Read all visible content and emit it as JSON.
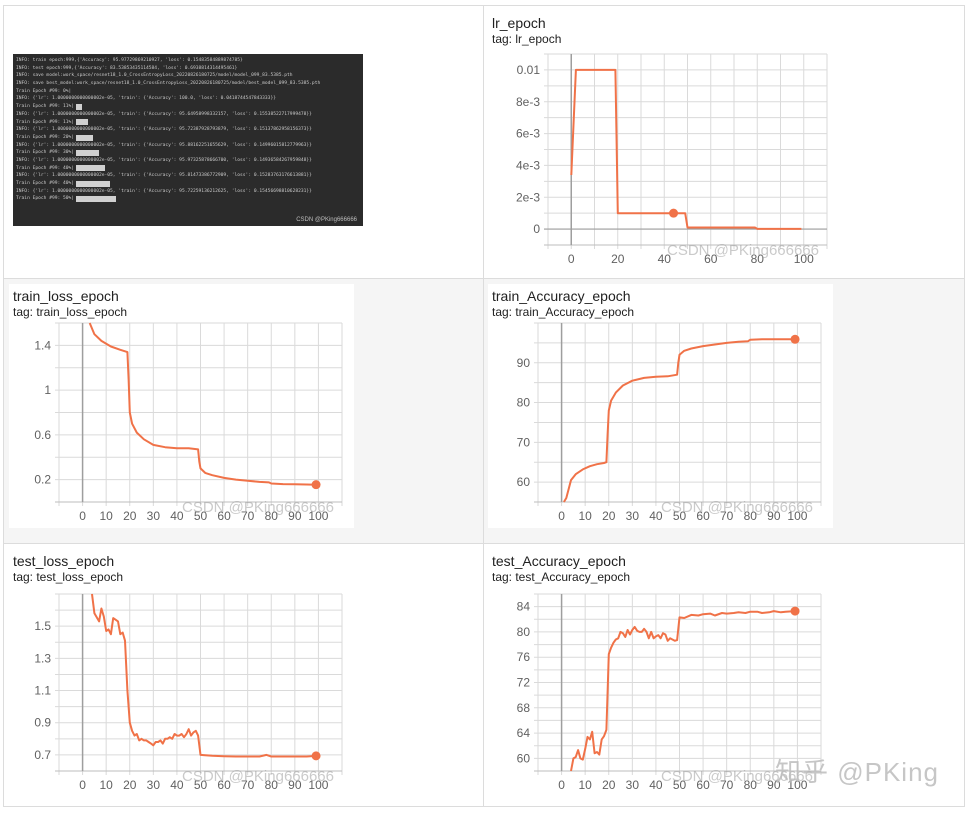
{
  "terminal": {
    "lines": [
      {
        "text": "INFO: train epoch:999,{'Accuracy': 95.97729869210927, 'loss': 0.15483584889874785}",
        "bar": 0
      },
      {
        "text": "INFO: test epoch:999,{'Accuracy': 83.53853435114584, 'loss': 0.6938814314495461}",
        "bar": 0
      },
      {
        "text": "INFO: save model:work_space/resnet18_1.0_CrossEntropyLoss_20220826180725/model/model_099_83.5385.pth",
        "bar": 0
      },
      {
        "text": "INFO: save best_model:work_space/resnet18_1.0_CrossEntropyLoss_20220826180725/model/best_model_099_83.5385.pth",
        "bar": 0
      },
      {
        "text": "Train Epoch #99:    0%|",
        "bar": 0
      },
      {
        "text": "INFO: {'lr': 1.0000000000000002e-05, 'train': {'Accuracy': 100.0, 'loss': 0.0418744547843333}}",
        "bar": 0
      },
      {
        "text": "Train Epoch #99:   11%|",
        "bar": 6
      },
      {
        "text": "INFO: {'lr': 1.0000000000000002e-05, 'train': {'Accuracy': 95.64958998332157, 'loss': 0.15538522717999478}}",
        "bar": 0
      },
      {
        "text": "Train Epoch #99:   11%|",
        "bar": 12
      },
      {
        "text": "INFO: {'lr': 1.0000000000000002e-05, 'train': {'Accuracy': 95.72387928793879, 'loss': 0.15137862958156373}}",
        "bar": 0
      },
      {
        "text": "Train Epoch #99:   20%|",
        "bar": 17
      },
      {
        "text": "INFO: {'lr': 1.0000000000000002e-05, 'train': {'Accuracy': 95.88162251655629, 'loss': 0.14996015812779963}}",
        "bar": 0
      },
      {
        "text": "Train Epoch #99:   30%|",
        "bar": 23
      },
      {
        "text": "INFO: {'lr': 1.0000000000000002e-05, 'train': {'Accuracy': 95.97325878666700, 'loss': 0.14936584267959848}}",
        "bar": 0
      },
      {
        "text": "Train Epoch #99:   40%|",
        "bar": 29
      },
      {
        "text": "INFO: {'lr': 1.0000000000000002e-05, 'train': {'Accuracy': 95.81473386772909, 'loss': 0.15283763176613881}}",
        "bar": 0
      },
      {
        "text": "Train Epoch #99:   40%|",
        "bar": 34
      },
      {
        "text": "INFO: {'lr': 1.0000000000000002e-05, 'train': {'Accuracy': 95.72259136212625, 'loss': 0.15456698810628231}}",
        "bar": 0
      },
      {
        "text": "Train Epoch #99:   50%|",
        "bar": 40
      }
    ],
    "watermark": "CSDN @PKing666666"
  },
  "panels": {
    "lr": {
      "title": "lr_epoch",
      "tag": "tag: lr_epoch"
    },
    "train_loss": {
      "title": "train_loss_epoch",
      "tag": "tag: train_loss_epoch"
    },
    "train_acc": {
      "title": "train_Accuracy_epoch",
      "tag": "tag: train_Accuracy_epoch"
    },
    "test_loss": {
      "title": "test_loss_epoch",
      "tag": "tag: test_loss_epoch"
    },
    "test_acc": {
      "title": "test_Accuracy_epoch",
      "tag": "tag: test_Accuracy_epoch"
    }
  },
  "watermarks": {
    "csdn": "CSDN @PKing666666",
    "zhihu": "知乎 @PKing"
  },
  "colors": {
    "line": "#f07248",
    "grid": "#dadada",
    "zero_axis": "#9e9e9e",
    "cell_bg_middle_row": "#f5f5f5",
    "terminal_bg": "#2b2b2b"
  },
  "chart_data": [
    {
      "type": "line",
      "title": "lr_epoch",
      "subtitle": "tag: lr_epoch",
      "xlabel": "",
      "ylabel": "",
      "xlim": [
        -10,
        110
      ],
      "ylim": [
        -0.001,
        0.011
      ],
      "xticks": [
        0,
        20,
        40,
        60,
        80,
        100
      ],
      "xtick_labels": [
        "0",
        "20",
        "40",
        "60",
        "80",
        "100"
      ],
      "yticks": [
        0,
        0.002,
        0.004,
        0.006,
        0.008,
        0.01
      ],
      "ytick_labels": [
        "0",
        "2e-3",
        "4e-3",
        "6e-3",
        "8e-3",
        "0.01"
      ],
      "grid": true,
      "highlight_point": {
        "x": 44,
        "y": 0.001
      },
      "x": [
        0,
        2,
        19,
        20,
        49,
        50,
        79,
        80,
        99
      ],
      "values": [
        0.0034,
        0.01,
        0.01,
        0.001,
        0.001,
        0.0001,
        0.0001,
        1e-05,
        1e-05
      ]
    },
    {
      "type": "line",
      "title": "train_loss_epoch",
      "subtitle": "tag: train_loss_epoch",
      "xlabel": "",
      "ylabel": "",
      "xlim": [
        -10,
        110
      ],
      "ylim": [
        0,
        1.6
      ],
      "xticks": [
        0,
        10,
        20,
        30,
        40,
        50,
        60,
        70,
        80,
        90,
        100
      ],
      "xtick_labels": [
        "0",
        "10",
        "20",
        "30",
        "40",
        "50",
        "60",
        "70",
        "80",
        "90",
        "100"
      ],
      "yticks": [
        0.2,
        0.6,
        1,
        1.4
      ],
      "ytick_labels": [
        "0.2",
        "0.6",
        "1",
        "1.4"
      ],
      "grid": true,
      "highlight_point": {
        "x": 99,
        "y": 0.155
      },
      "x": [
        3,
        5,
        8,
        12,
        16,
        19,
        19.5,
        20,
        21,
        23,
        26,
        30,
        35,
        40,
        45,
        49,
        49.5,
        50,
        52,
        55,
        60,
        65,
        70,
        75,
        79,
        80,
        85,
        90,
        95,
        99
      ],
      "values": [
        1.6,
        1.5,
        1.44,
        1.39,
        1.36,
        1.34,
        1.1,
        0.8,
        0.7,
        0.62,
        0.56,
        0.51,
        0.49,
        0.48,
        0.48,
        0.47,
        0.36,
        0.3,
        0.26,
        0.24,
        0.215,
        0.2,
        0.19,
        0.18,
        0.175,
        0.165,
        0.16,
        0.158,
        0.156,
        0.155
      ]
    },
    {
      "type": "line",
      "title": "train_Accuracy_epoch",
      "subtitle": "tag: train_Accuracy_epoch",
      "xlabel": "",
      "ylabel": "",
      "xlim": [
        -10,
        110
      ],
      "ylim": [
        55,
        100
      ],
      "xticks": [
        0,
        10,
        20,
        30,
        40,
        50,
        60,
        70,
        80,
        90,
        100
      ],
      "xtick_labels": [
        "0",
        "10",
        "20",
        "30",
        "40",
        "50",
        "60",
        "70",
        "80",
        "90",
        "100"
      ],
      "yticks": [
        60,
        70,
        80,
        90
      ],
      "ytick_labels": [
        "60",
        "70",
        "80",
        "90"
      ],
      "grid": true,
      "highlight_point": {
        "x": 99,
        "y": 95.9
      },
      "x": [
        1,
        2,
        4,
        6,
        9,
        12,
        15,
        18,
        19,
        19.5,
        20,
        21,
        23,
        26,
        30,
        35,
        40,
        45,
        49,
        49.5,
        50,
        52,
        55,
        60,
        65,
        70,
        75,
        79,
        80,
        85,
        90,
        95,
        99
      ],
      "values": [
        55,
        56,
        60.5,
        62,
        63.2,
        64,
        64.5,
        64.8,
        65,
        72,
        78,
        80.5,
        82.5,
        84.3,
        85.5,
        86.2,
        86.5,
        86.6,
        87,
        90,
        92,
        93,
        93.6,
        94.2,
        94.6,
        95,
        95.3,
        95.4,
        95.8,
        95.9,
        95.9,
        95.9,
        95.9
      ]
    },
    {
      "type": "line",
      "title": "test_loss_epoch",
      "subtitle": "tag: test_loss_epoch",
      "xlabel": "",
      "ylabel": "",
      "xlim": [
        -10,
        110
      ],
      "ylim": [
        0.6,
        1.7
      ],
      "xticks": [
        0,
        10,
        20,
        30,
        40,
        50,
        60,
        70,
        80,
        90,
        100
      ],
      "xtick_labels": [
        "0",
        "10",
        "20",
        "30",
        "40",
        "50",
        "60",
        "70",
        "80",
        "90",
        "100"
      ],
      "yticks": [
        0.7,
        0.9,
        1.1,
        1.3,
        1.5
      ],
      "ytick_labels": [
        "0.7",
        "0.9",
        "1.1",
        "1.3",
        "1.5"
      ],
      "grid": true,
      "highlight_point": {
        "x": 99,
        "y": 0.694
      },
      "x": [
        4,
        5,
        7,
        8,
        9,
        10,
        11,
        12,
        13,
        14,
        15,
        16,
        17,
        18,
        19,
        20,
        21,
        22,
        23,
        24,
        25,
        26,
        27,
        28,
        29,
        30,
        31,
        32,
        33,
        34,
        35,
        36,
        37,
        38,
        39,
        40,
        41,
        42,
        43,
        44,
        45,
        46,
        47,
        48,
        49,
        50,
        52,
        55,
        60,
        65,
        70,
        75,
        78,
        80,
        85,
        90,
        95,
        99
      ],
      "values": [
        1.7,
        1.58,
        1.53,
        1.61,
        1.56,
        1.47,
        1.48,
        1.45,
        1.55,
        1.54,
        1.53,
        1.45,
        1.46,
        1.41,
        1.1,
        0.9,
        0.85,
        0.82,
        0.83,
        0.79,
        0.8,
        0.79,
        0.79,
        0.78,
        0.77,
        0.76,
        0.78,
        0.78,
        0.79,
        0.77,
        0.8,
        0.8,
        0.81,
        0.8,
        0.83,
        0.82,
        0.82,
        0.83,
        0.81,
        0.83,
        0.86,
        0.82,
        0.84,
        0.85,
        0.82,
        0.7,
        0.698,
        0.695,
        0.692,
        0.69,
        0.69,
        0.69,
        0.7,
        0.69,
        0.69,
        0.69,
        0.69,
        0.694
      ]
    },
    {
      "type": "line",
      "title": "test_Accuracy_epoch",
      "subtitle": "tag: test_Accuracy_epoch",
      "xlabel": "",
      "ylabel": "",
      "xlim": [
        -10,
        110
      ],
      "ylim": [
        58,
        86
      ],
      "xticks": [
        0,
        10,
        20,
        30,
        40,
        50,
        60,
        70,
        80,
        90,
        100
      ],
      "xtick_labels": [
        "0",
        "10",
        "20",
        "30",
        "40",
        "50",
        "60",
        "70",
        "80",
        "90",
        "100"
      ],
      "yticks": [
        60,
        64,
        68,
        72,
        76,
        80,
        84
      ],
      "ytick_labels": [
        "60",
        "64",
        "68",
        "72",
        "76",
        "80",
        "84"
      ],
      "grid": true,
      "highlight_point": {
        "x": 99,
        "y": 83.3
      },
      "x": [
        4,
        5,
        6,
        7,
        8,
        9,
        10,
        11,
        12,
        13,
        14,
        15,
        16,
        17,
        18,
        19,
        20,
        21,
        22,
        23,
        24,
        25,
        26,
        27,
        28,
        29,
        30,
        31,
        32,
        33,
        34,
        35,
        36,
        37,
        38,
        39,
        40,
        41,
        42,
        43,
        44,
        45,
        46,
        47,
        48,
        49,
        50,
        52,
        55,
        58,
        60,
        63,
        65,
        68,
        70,
        73,
        75,
        78,
        80,
        83,
        85,
        88,
        90,
        93,
        95,
        99
      ],
      "values": [
        58,
        60,
        60.2,
        61.3,
        60,
        59.8,
        61.5,
        63.4,
        63,
        64.2,
        60.8,
        61,
        60.6,
        63,
        63.5,
        64.5,
        76.5,
        77.5,
        78.3,
        78.8,
        79,
        80,
        79.8,
        79.2,
        80.3,
        79.6,
        80.3,
        80.8,
        80.2,
        80,
        80,
        80.5,
        80,
        79,
        80,
        79,
        79.3,
        79.5,
        79,
        79.8,
        79.6,
        78.6,
        79,
        78.8,
        78.6,
        78.7,
        82.3,
        82.2,
        82.7,
        82.6,
        82.8,
        82.9,
        82.6,
        83,
        82.9,
        83,
        83.1,
        83,
        83.2,
        83.2,
        83,
        83.1,
        83.3,
        83.1,
        83.2,
        83.3
      ]
    }
  ]
}
